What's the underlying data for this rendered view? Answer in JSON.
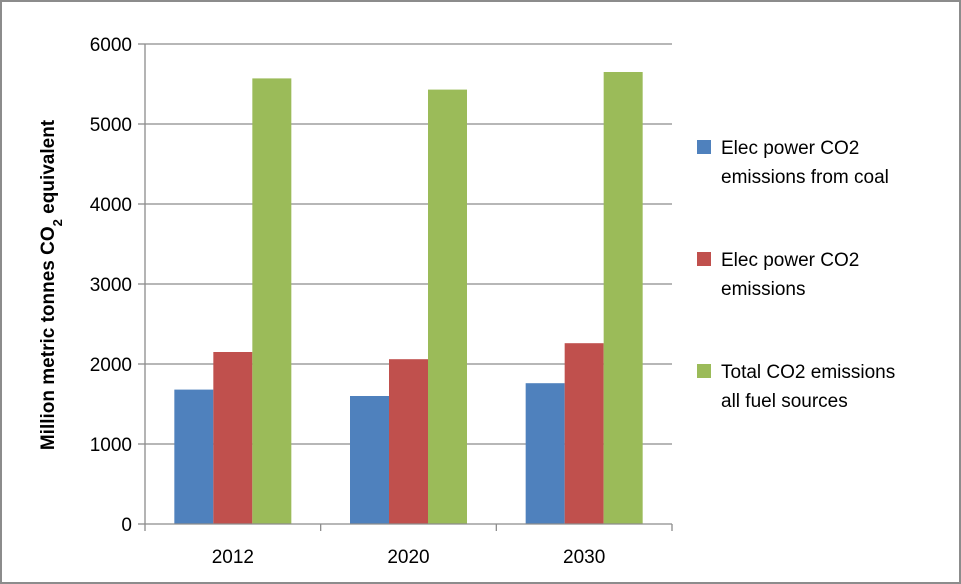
{
  "chart_data": {
    "type": "bar",
    "title": "",
    "ylabel": {
      "main": "Million metric tonnes CO",
      "subscript": "2",
      "suffix": " equivalent"
    },
    "xlabel": "",
    "ylim": [
      0,
      6000
    ],
    "yticks": [
      0,
      1000,
      2000,
      3000,
      4000,
      5000,
      6000
    ],
    "grid": true,
    "legend_position": "right",
    "categories": [
      "2012",
      "2020",
      "2030"
    ],
    "series": [
      {
        "name": "Elec power CO2 emissions from coal",
        "legend_lines": [
          "Elec power CO2",
          "emissions from coal"
        ],
        "color": "#4f81bd",
        "values": [
          1680,
          1600,
          1760
        ]
      },
      {
        "name": "Elec power CO2 emissions",
        "legend_lines": [
          "Elec power CO2",
          "emissions"
        ],
        "color": "#c0504d",
        "values": [
          2150,
          2060,
          2260
        ]
      },
      {
        "name": "Total CO2 emissions all fuel sources",
        "legend_lines": [
          "Total CO2 emissions",
          "all fuel sources"
        ],
        "color": "#9bbb59",
        "values": [
          5570,
          5430,
          5650
        ]
      }
    ]
  }
}
